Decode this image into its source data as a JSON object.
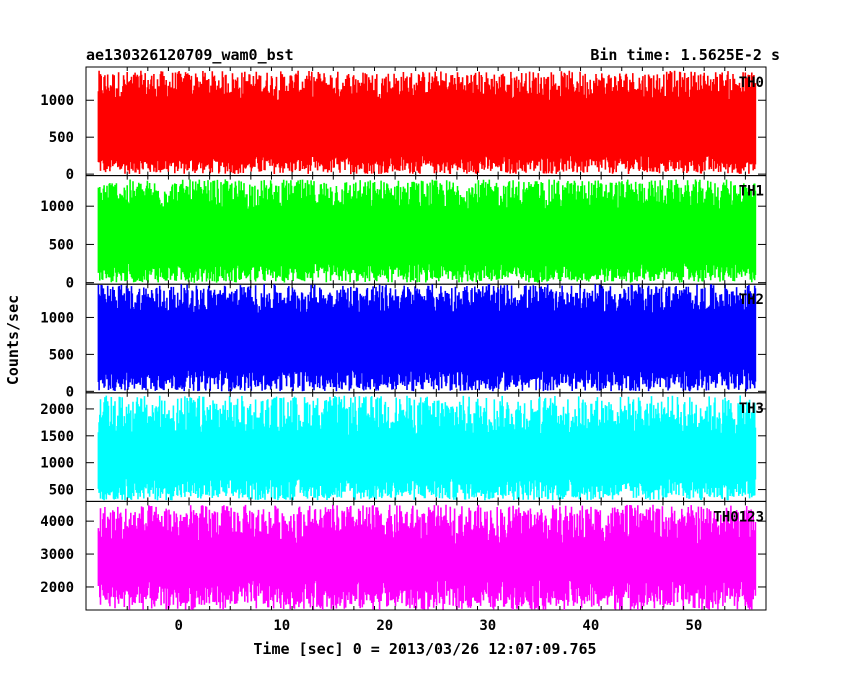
{
  "header": {
    "left": "ae130326120709_wam0_bst",
    "right": "Bin time: 1.5625E-2 s"
  },
  "axes": {
    "xlabel": "Time [sec] 0 = 2013/03/26 12:07:09.765",
    "ylabel": "Counts/sec",
    "xlim": [
      -9,
      57
    ],
    "xticks": [
      0,
      10,
      20,
      30,
      40,
      50
    ]
  },
  "chart_data": [
    {
      "type": "line",
      "series": [
        {
          "name": "TH0",
          "color": "#ff0000"
        }
      ],
      "ylim": [
        -20,
        1450
      ],
      "yticks": [
        0,
        500,
        1000
      ],
      "data_range": [
        -7.8,
        56
      ],
      "bin": 0.015625,
      "mean": 640,
      "spread_min": [
        0,
        250
      ],
      "spread_max": [
        1000,
        1400
      ]
    },
    {
      "type": "line",
      "series": [
        {
          "name": "TH1",
          "color": "#00ff00"
        }
      ],
      "ylim": [
        -20,
        1400
      ],
      "yticks": [
        0,
        500,
        1000
      ],
      "data_range": [
        -7.8,
        56
      ],
      "bin": 0.015625,
      "mean": 620,
      "spread_min": [
        0,
        250
      ],
      "spread_max": [
        950,
        1350
      ]
    },
    {
      "type": "line",
      "series": [
        {
          "name": "TH2",
          "color": "#0000ff"
        }
      ],
      "ylim": [
        -20,
        1450
      ],
      "yticks": [
        0,
        500,
        1000
      ],
      "data_range": [
        -7.8,
        56
      ],
      "bin": 0.015625,
      "mean": 700,
      "spread_min": [
        0,
        300
      ],
      "spread_max": [
        1050,
        1450
      ]
    },
    {
      "type": "line",
      "series": [
        {
          "name": "TH3",
          "color": "#00ffff"
        }
      ],
      "ylim": [
        280,
        2300
      ],
      "yticks": [
        500,
        1000,
        1500,
        2000
      ],
      "data_range": [
        -7.8,
        56
      ],
      "bin": 0.015625,
      "mean": 1050,
      "spread_min": [
        300,
        700
      ],
      "spread_max": [
        1500,
        2250
      ]
    },
    {
      "type": "line",
      "series": [
        {
          "name": "TH0123",
          "color": "#ff00ff"
        }
      ],
      "ylim": [
        1300,
        4600
      ],
      "yticks": [
        2000,
        3000,
        4000
      ],
      "data_range": [
        -7.8,
        56
      ],
      "bin": 0.015625,
      "mean": 2700,
      "spread_min": [
        1300,
        2200
      ],
      "spread_max": [
        3300,
        4500
      ]
    }
  ]
}
